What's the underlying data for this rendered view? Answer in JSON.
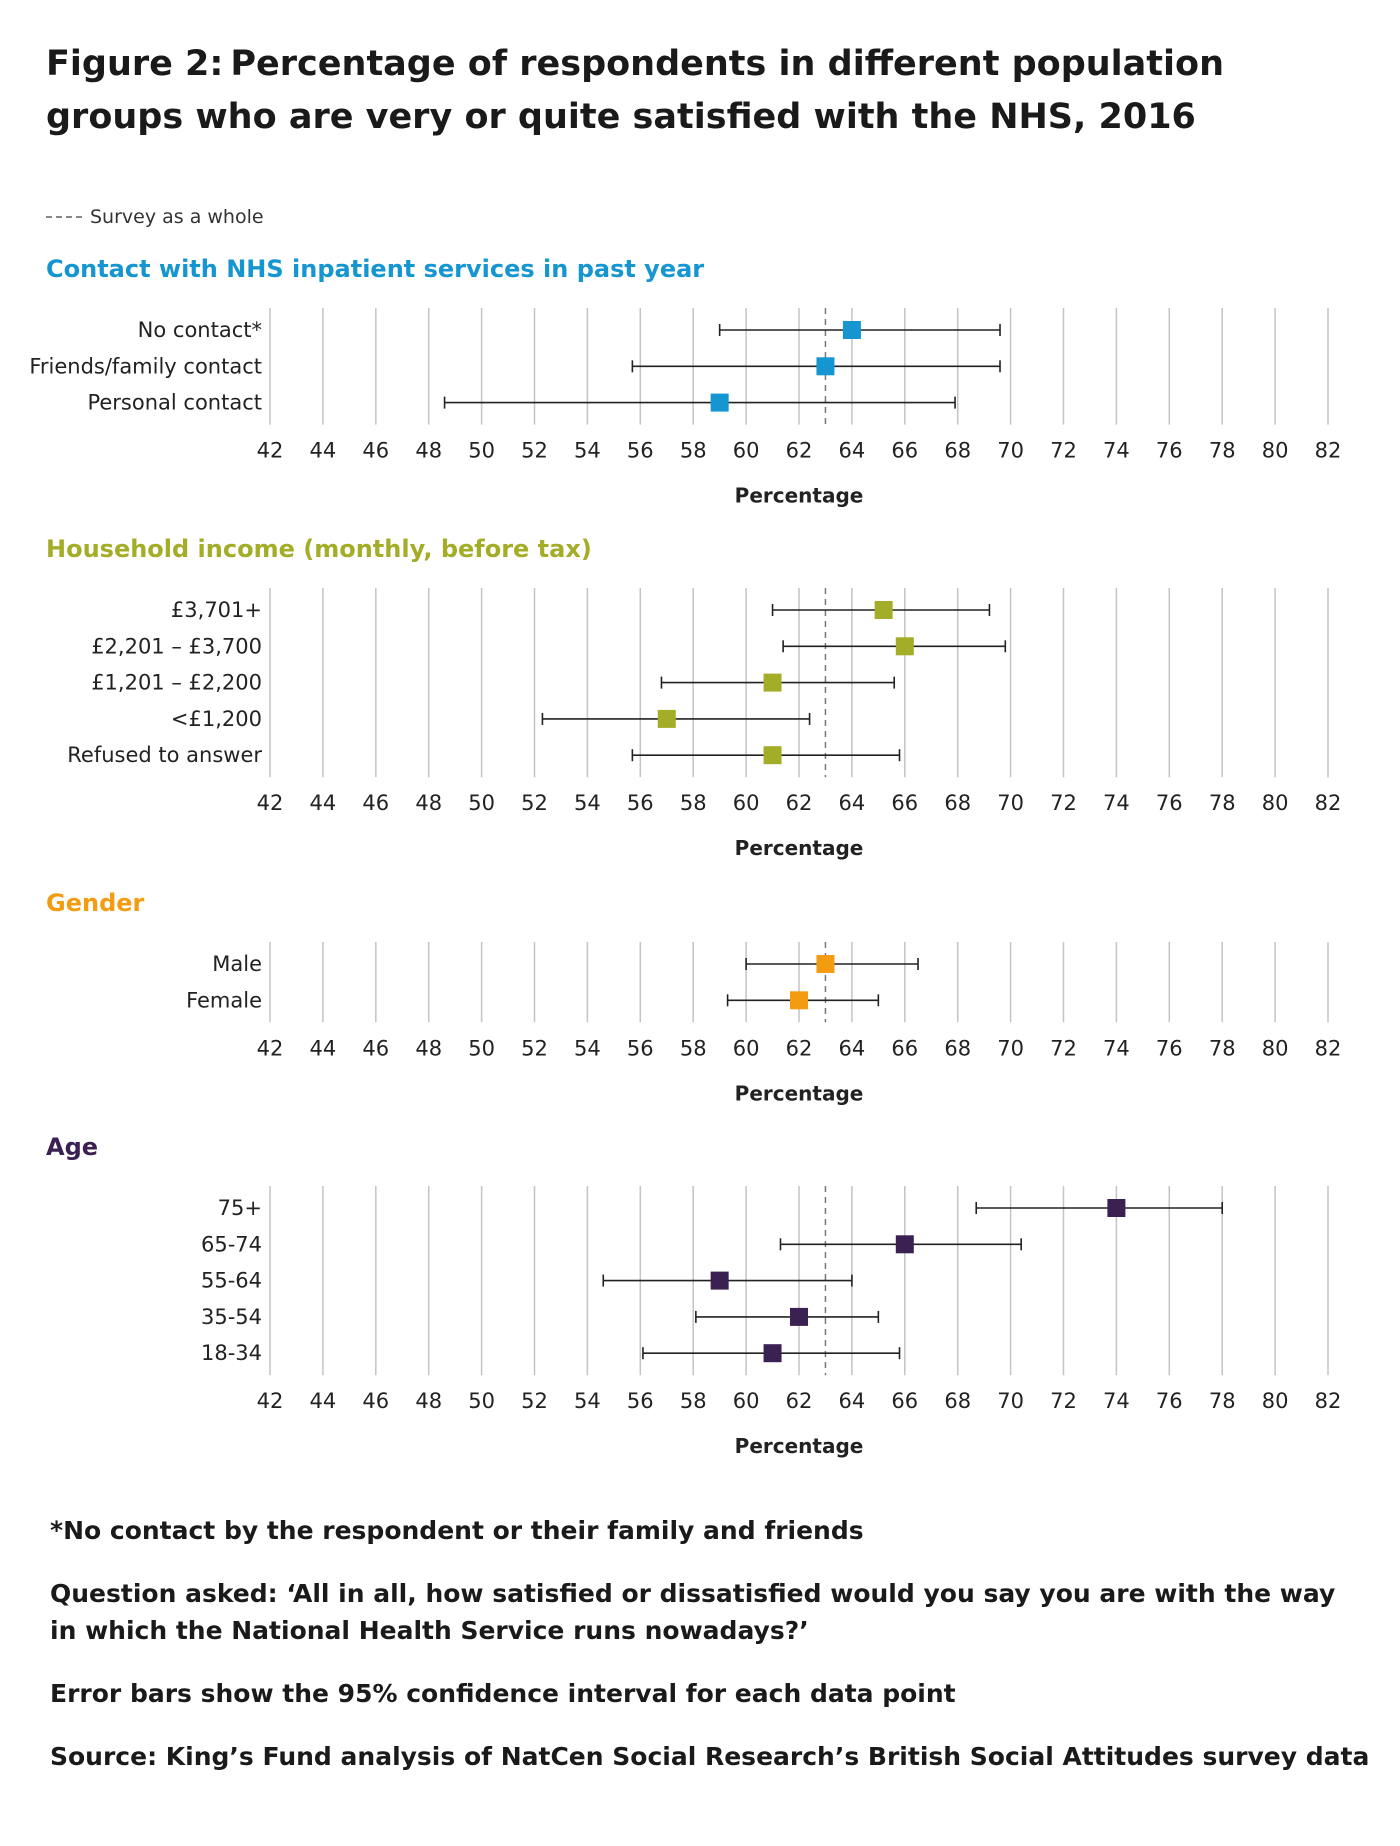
{
  "title": "Figure 2: Percentage of respondents in different population groups who are very or quite satisfied with the NHS, 2016",
  "legend": {
    "reference_label": "Survey as a whole"
  },
  "chart_data": {
    "type": "scatter",
    "subtype": "dot-plot-with-error-bars",
    "xlabel": "Percentage",
    "xlim": [
      42,
      82
    ],
    "xticks": [
      42,
      44,
      46,
      48,
      50,
      52,
      54,
      56,
      58,
      60,
      62,
      64,
      66,
      68,
      70,
      72,
      74,
      76,
      78,
      80,
      82
    ],
    "reference_line": {
      "label": "Survey as a whole",
      "value": 63
    },
    "grid": true,
    "legend_position": "top-left",
    "panels": [
      {
        "title": "Contact with NHS inpatient services in past year",
        "color": "#1596d0",
        "items": [
          {
            "label": "No contact*",
            "value": 64,
            "ci_low": 59,
            "ci_high": 69.6
          },
          {
            "label": "Friends/family contact",
            "value": 63,
            "ci_low": 55.7,
            "ci_high": 69.6
          },
          {
            "label": "Personal contact",
            "value": 59,
            "ci_low": 48.6,
            "ci_high": 67.9
          }
        ]
      },
      {
        "title": "Household income (monthly, before tax)",
        "color": "#a3ad27",
        "items": [
          {
            "label": "£3,701+",
            "value": 65.2,
            "ci_low": 61,
            "ci_high": 69.2
          },
          {
            "label": "£2,201 – £3,700",
            "value": 66,
            "ci_low": 61.4,
            "ci_high": 69.8
          },
          {
            "label": "£1,201 – £2,200",
            "value": 61,
            "ci_low": 56.8,
            "ci_high": 65.6
          },
          {
            "label": "<£1,200",
            "value": 57,
            "ci_low": 52.3,
            "ci_high": 62.4
          },
          {
            "label": "Refused to answer",
            "value": 61,
            "ci_low": 55.7,
            "ci_high": 65.8
          }
        ]
      },
      {
        "title": "Gender",
        "color": "#f39c12",
        "items": [
          {
            "label": "Male",
            "value": 63,
            "ci_low": 60,
            "ci_high": 66.5
          },
          {
            "label": "Female",
            "value": 62,
            "ci_low": 59.3,
            "ci_high": 65
          }
        ]
      },
      {
        "title": "Age",
        "color": "#3b2052",
        "items": [
          {
            "label": "75+",
            "value": 74,
            "ci_low": 68.7,
            "ci_high": 78
          },
          {
            "label": "65-74",
            "value": 66,
            "ci_low": 61.3,
            "ci_high": 70.4
          },
          {
            "label": "55-64",
            "value": 59,
            "ci_low": 54.6,
            "ci_high": 64
          },
          {
            "label": "35-54",
            "value": 62,
            "ci_low": 58.1,
            "ci_high": 65
          },
          {
            "label": "18-34",
            "value": 61,
            "ci_low": 56.1,
            "ci_high": 65.8
          }
        ]
      }
    ]
  },
  "notes": {
    "footnote": "*No contact by the respondent or their family and friends",
    "question": "Question asked: ‘All in all, how satisfied or dissatisfied would you say you are with the way in which the National Health Service runs nowadays?’",
    "error_bars": "Error bars show the 95% confidence interval for each data point",
    "source": "Source: King’s Fund analysis of NatCen Social Research’s British Social Attitudes survey data"
  }
}
